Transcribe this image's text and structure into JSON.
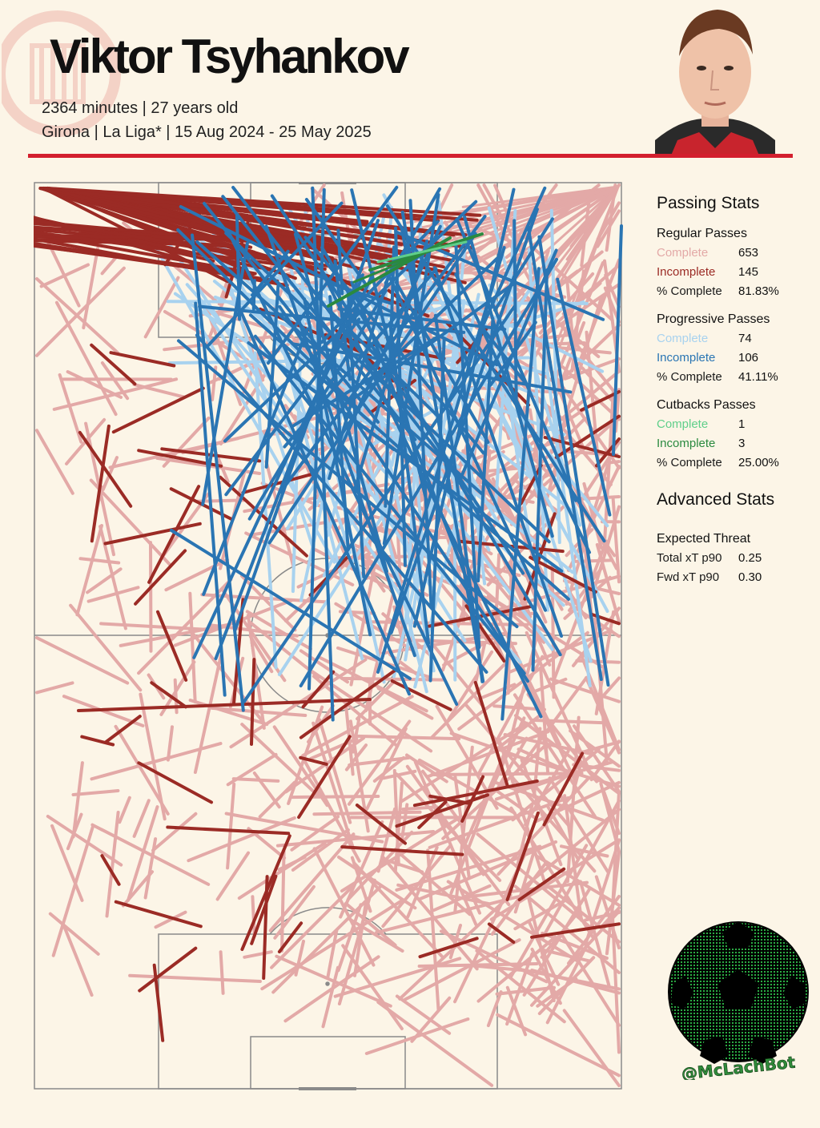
{
  "header": {
    "player_name": "Viktor Tsyhankov",
    "line1": "2364 minutes | 27 years old",
    "line2": "Girona |  La Liga* | 15 Aug 2024 - 25 May 2025"
  },
  "colors": {
    "background": "#fcf5e7",
    "accent_rule": "#d31f2e",
    "regular_complete": "#e3a9a7",
    "regular_incomplete": "#9b2b25",
    "progressive_complete": "#a8d2ef",
    "progressive_incomplete": "#2a75b3",
    "cutback_complete": "#5fcf8a",
    "cutback_incomplete": "#2a8a3f",
    "pitch_lines": "#8a8a8a"
  },
  "stats": {
    "passing_title": "Passing Stats",
    "regular": {
      "title": "Regular Passes",
      "complete_label": "Complete",
      "complete_value": "653",
      "incomplete_label": "Incomplete",
      "incomplete_value": "145",
      "pct_label": "% Complete",
      "pct_value": "81.83%"
    },
    "progressive": {
      "title": "Progressive Passes",
      "complete_label": "Complete",
      "complete_value": "74",
      "incomplete_label": "Incomplete",
      "incomplete_value": "106",
      "pct_label": "% Complete",
      "pct_value": "41.11%"
    },
    "cutbacks": {
      "title": "Cutbacks Passes",
      "complete_label": "Complete",
      "complete_value": "1",
      "incomplete_label": "Incomplete",
      "incomplete_value": "3",
      "pct_label": "% Complete",
      "pct_value": "25.00%"
    },
    "advanced_title": "Advanced Stats",
    "xt": {
      "title": "Expected Threat",
      "total_label": "Total xT p90",
      "total_value": "0.25",
      "fwd_label": "Fwd xT p90",
      "fwd_value": "0.30"
    }
  },
  "badge": {
    "handle": "@McLachBot"
  },
  "crest": {
    "text": "GIRONA FC"
  },
  "chart_data": {
    "type": "scatter",
    "pitch": {
      "length": 105,
      "width": 68,
      "orientation": "vertical, attacking upward"
    },
    "series": [
      {
        "name": "Regular Passes Complete",
        "count": 653
      },
      {
        "name": "Regular Passes Incomplete",
        "count": 145
      },
      {
        "name": "Progressive Passes Complete",
        "count": 74
      },
      {
        "name": "Progressive Passes Incomplete",
        "count": 106
      },
      {
        "name": "Cutbacks Passes Complete",
        "count": 1
      },
      {
        "name": "Cutbacks Passes Incomplete",
        "count": 3
      }
    ]
  }
}
